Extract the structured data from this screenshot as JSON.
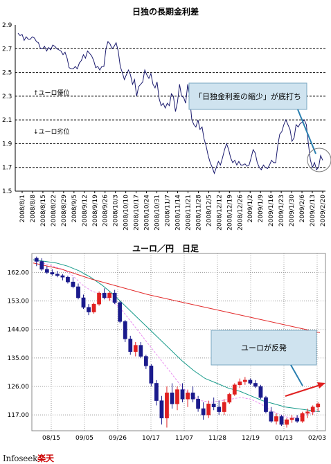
{
  "chart_data": [
    {
      "type": "line",
      "title": "日独の長期金利差",
      "ylim": [
        1.5,
        2.9
      ],
      "yticks": [
        "2.9",
        "2.7",
        "2.5",
        "2.3",
        "2.1",
        "1.9",
        "1.7",
        "1.5"
      ],
      "x_labels": [
        "2008/8/1",
        "2008/8/8",
        "2008/8/15",
        "2008/8/22",
        "2008/8/29",
        "2008/9/5",
        "2008/9/12",
        "2008/9/19",
        "2008/9/26",
        "2008/10/3",
        "2008/10/10",
        "2008/10/17",
        "2008/10/24",
        "2008/10/31",
        "2008/11/7",
        "2008/11/14",
        "2008/11/21",
        "2008/11/28",
        "2008/12/5",
        "2008/12/12",
        "2008/12/19",
        "2008/12/26",
        "2009/1/2",
        "2009/1/9",
        "2009/1/16",
        "2009/1/23",
        "2009/1/30",
        "2009/2/6",
        "2009/2/13",
        "2009/2/20"
      ],
      "grid": true,
      "series": [
        {
          "color": "#1a1a6e",
          "values": [
            2.83,
            2.81,
            2.82,
            2.77,
            2.8,
            2.78,
            2.78,
            2.8,
            2.79,
            2.76,
            2.75,
            2.7,
            2.7,
            2.72,
            2.68,
            2.71,
            2.69,
            2.73,
            2.72,
            2.7,
            2.69,
            2.68,
            2.65,
            2.67,
            2.62,
            2.54,
            2.53,
            2.53,
            2.55,
            2.53,
            2.58,
            2.6,
            2.65,
            2.62,
            2.68,
            2.66,
            2.64,
            2.6,
            2.54,
            2.55,
            2.52,
            2.55,
            2.55,
            2.7,
            2.76,
            2.74,
            2.7,
            2.72,
            2.75,
            2.68,
            2.55,
            2.5,
            2.44,
            2.48,
            2.52,
            2.48,
            2.4,
            2.44,
            2.3,
            2.38,
            2.4,
            2.42,
            2.52,
            2.48,
            2.45,
            2.49,
            2.4,
            2.37,
            2.42,
            2.28,
            2.22,
            2.24,
            2.2,
            2.24,
            2.22,
            2.32,
            2.3,
            2.17,
            2.25,
            2.4,
            2.3,
            2.29,
            2.24,
            2.4,
            2.28,
            2.1,
            2.06,
            2.04,
            2.1,
            2.02,
            2.04,
            1.94,
            1.88,
            1.8,
            1.74,
            1.7,
            1.65,
            1.7,
            1.75,
            1.72,
            1.78,
            1.85,
            1.9,
            1.85,
            1.78,
            1.74,
            1.76,
            1.72,
            1.75,
            1.72,
            1.72,
            1.73,
            1.71,
            1.72,
            1.78,
            1.85,
            1.82,
            1.74,
            1.7,
            1.68,
            1.72,
            1.7,
            1.69,
            1.72,
            1.76,
            1.74,
            1.74,
            1.88,
            1.98,
            2.0,
            2.06,
            2.1,
            2.06,
            2.02,
            1.92,
            1.95,
            2.06,
            2.04,
            2.07,
            2.08,
            2.1,
            2.06,
            1.9,
            1.76,
            1.7,
            1.74,
            1.68,
            1.7,
            1.8,
            1.76
          ]
        }
      ],
      "annotations": {
        "up_label": "↑ユーロ優位",
        "down_label": "↓ユーロ劣位",
        "callout": "「日独金利差の縮少」が底打ち"
      }
    },
    {
      "type": "candlestick",
      "title": "ユーロ／円　日足",
      "ylim": [
        112,
        168
      ],
      "yticks": [
        "162.00",
        "153.00",
        "144.00",
        "135.00",
        "126.00",
        "117.00"
      ],
      "x_labels": [
        "08/15",
        "09/05",
        "09/26",
        "10/17",
        "11/07",
        "11/28",
        "12/19",
        "01/13",
        "02/03"
      ],
      "grid": true,
      "ohlc": [
        [
          166.5,
          167.0,
          164.0,
          165.5
        ],
        [
          165.5,
          166.5,
          162.5,
          163.0
        ],
        [
          163.0,
          164.0,
          161.5,
          162.0
        ],
        [
          162.0,
          163.0,
          161.0,
          161.5
        ],
        [
          161.5,
          162.5,
          160.5,
          161.0
        ],
        [
          161.0,
          161.5,
          159.5,
          160.5
        ],
        [
          160.5,
          161.0,
          158.5,
          159.0
        ],
        [
          159.0,
          160.5,
          157.0,
          157.5
        ],
        [
          157.5,
          158.5,
          153.5,
          154.0
        ],
        [
          154.0,
          155.0,
          150.5,
          151.0
        ],
        [
          151.0,
          152.0,
          148.5,
          149.5
        ],
        [
          149.5,
          152.5,
          149.0,
          152.0
        ],
        [
          152.0,
          156.0,
          151.5,
          155.5
        ],
        [
          155.5,
          157.0,
          153.5,
          154.0
        ],
        [
          154.0,
          156.0,
          153.0,
          155.5
        ],
        [
          155.5,
          156.5,
          152.0,
          152.5
        ],
        [
          152.5,
          153.0,
          146.0,
          146.5
        ],
        [
          146.5,
          147.0,
          140.0,
          141.0
        ],
        [
          141.0,
          142.0,
          136.0,
          137.0
        ],
        [
          137.0,
          140.0,
          135.5,
          139.0
        ],
        [
          139.0,
          140.0,
          135.0,
          135.5
        ],
        [
          135.5,
          136.0,
          131.5,
          132.5
        ],
        [
          132.5,
          133.0,
          126.0,
          127.0
        ],
        [
          127.0,
          128.0,
          120.0,
          121.5
        ],
        [
          121.5,
          123.0,
          114.0,
          116.0
        ],
        [
          116.0,
          126.0,
          113.0,
          124.0
        ],
        [
          124.0,
          127.0,
          119.0,
          120.5
        ],
        [
          120.5,
          126.0,
          118.5,
          125.0
        ],
        [
          125.0,
          127.0,
          121.0,
          122.0
        ],
        [
          122.0,
          125.0,
          119.5,
          124.0
        ],
        [
          124.0,
          126.0,
          121.0,
          122.0
        ],
        [
          122.0,
          123.0,
          118.0,
          119.0
        ],
        [
          119.0,
          121.0,
          115.5,
          117.0
        ],
        [
          117.0,
          121.5,
          116.0,
          120.5
        ],
        [
          120.5,
          122.5,
          118.5,
          119.5
        ],
        [
          119.5,
          121.5,
          117.0,
          118.0
        ],
        [
          118.0,
          122.0,
          117.0,
          121.0
        ],
        [
          121.0,
          124.0,
          120.5,
          123.5
        ],
        [
          123.5,
          127.0,
          123.0,
          126.5
        ],
        [
          126.5,
          128.5,
          125.5,
          127.5
        ],
        [
          127.5,
          129.0,
          126.5,
          128.0
        ],
        [
          128.0,
          128.5,
          126.5,
          127.0
        ],
        [
          127.0,
          128.0,
          125.5,
          126.0
        ],
        [
          126.0,
          126.5,
          122.0,
          122.5
        ],
        [
          122.5,
          123.0,
          117.5,
          118.0
        ],
        [
          118.0,
          119.5,
          114.5,
          115.0
        ],
        [
          115.0,
          117.5,
          114.0,
          116.5
        ],
        [
          116.5,
          117.0,
          113.5,
          114.0
        ],
        [
          114.0,
          116.0,
          113.0,
          115.5
        ],
        [
          115.5,
          117.0,
          114.5,
          116.0
        ],
        [
          116.0,
          117.0,
          114.5,
          115.0
        ],
        [
          115.0,
          118.0,
          114.5,
          117.5
        ],
        [
          117.5,
          119.0,
          116.0,
          118.0
        ],
        [
          118.0,
          120.0,
          117.0,
          119.5
        ],
        [
          119.5,
          121.0,
          118.0,
          120.5
        ]
      ],
      "series": [
        {
          "color": "#e98cf0",
          "values": [
            166.0,
            165.0,
            164.0,
            163.0,
            161.0,
            158.0,
            156.0,
            155.0,
            153.0,
            150.0,
            146.0,
            142.0,
            138.0,
            134.0,
            130.0,
            126.0,
            123.0,
            121.5,
            121.0,
            121.5,
            122.0,
            122.5,
            122.0,
            120.5,
            118.5,
            117.0,
            116.0,
            116.5,
            117.5,
            118.5
          ]
        },
        {
          "color": "#179a8a",
          "values": [
            166.0,
            165.5,
            165.0,
            164.0,
            162.5,
            160.5,
            158.0,
            155.0,
            151.5,
            148.0,
            144.5,
            141.0,
            137.5,
            134.0,
            131.0,
            128.5,
            127.0,
            125.5,
            124.5,
            123.0,
            121.5,
            120.5,
            119.5,
            119.0,
            118.5,
            118.0
          ]
        },
        {
          "color": "#e32b2b",
          "values": [
            165.0,
            163.0,
            160.0,
            157.5,
            155.0,
            153.0,
            151.0,
            149.0,
            147.0,
            145.0,
            143.0
          ]
        }
      ],
      "annotations": {
        "callout": "ユーロが反発"
      }
    }
  ],
  "footer": {
    "logo_text": "Infoseek",
    "logo_brand": "楽天"
  }
}
